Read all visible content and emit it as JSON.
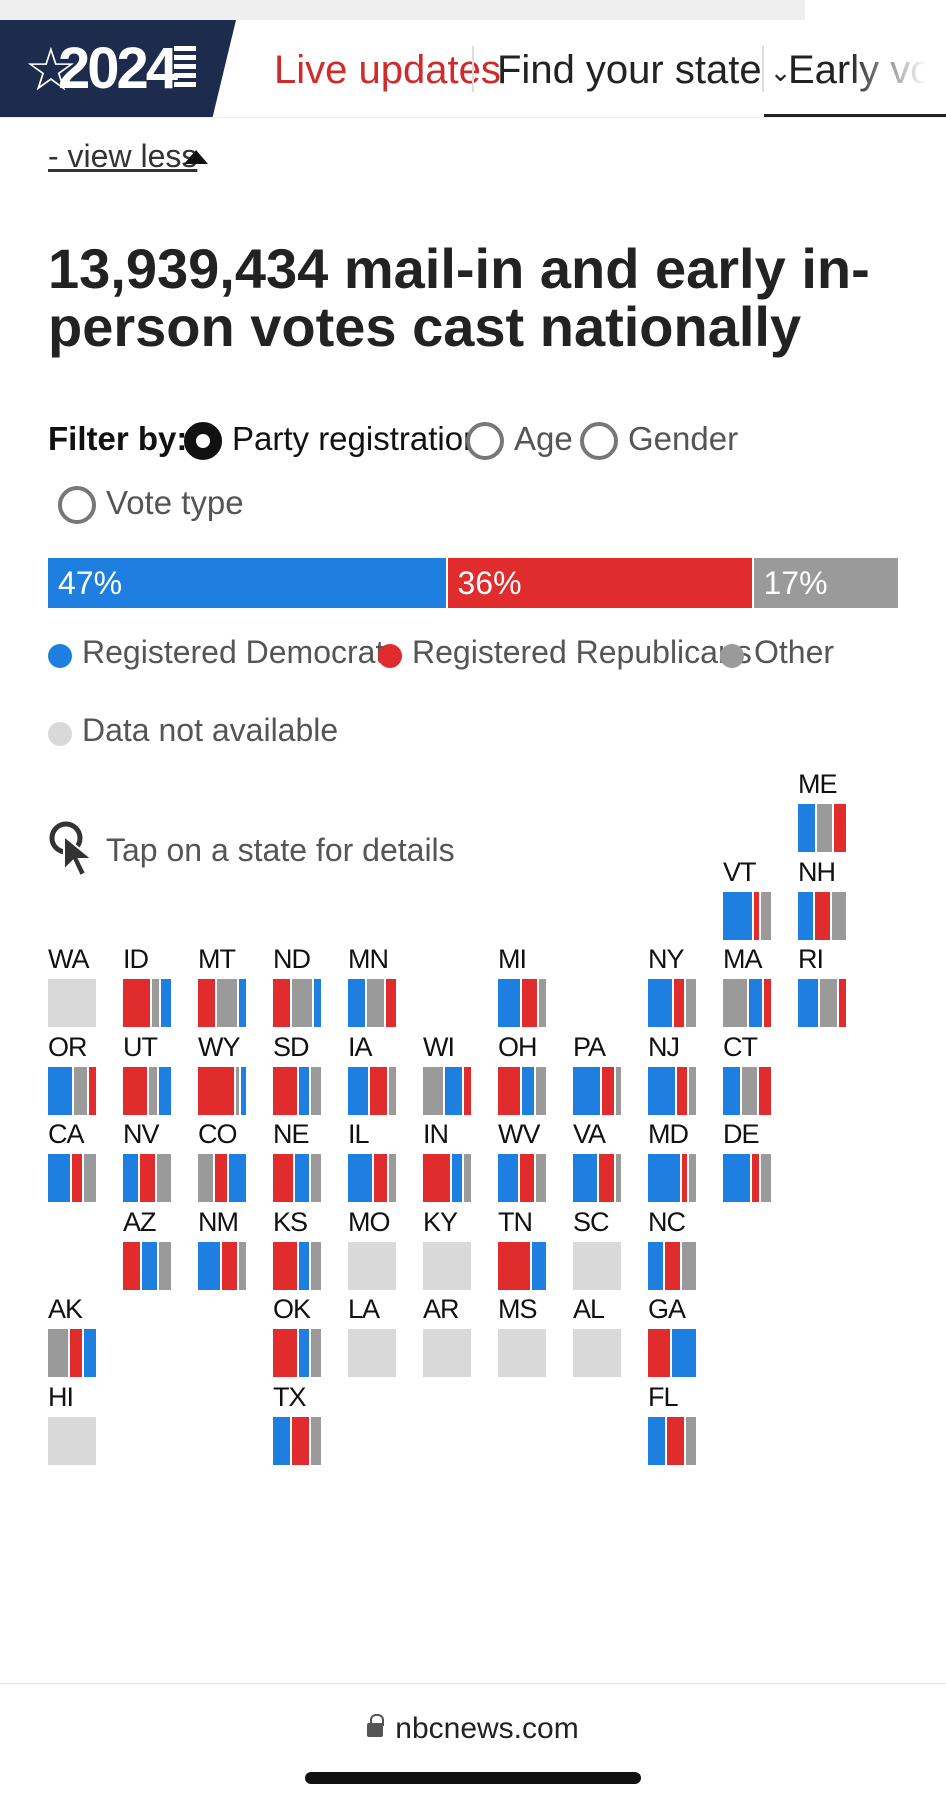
{
  "nav": {
    "logo_year": "2024",
    "items": [
      {
        "label": "Live updates"
      },
      {
        "label": "Find your state"
      },
      {
        "label": "Early voting"
      }
    ]
  },
  "view_less": "- view less",
  "headline": "13,939,434 mail-in and early in-person votes cast nationally",
  "filter": {
    "label": "Filter by:",
    "options": [
      "Party registration",
      "Age",
      "Gender",
      "Vote type"
    ],
    "selected": "Party registration"
  },
  "colors": {
    "dem": "#1f7fe0",
    "rep": "#e02c2c",
    "other": "#9a9a9a",
    "na": "#d9d9d9"
  },
  "national": {
    "segments": [
      {
        "label": "47%",
        "value": 47,
        "party": "dem"
      },
      {
        "label": "36%",
        "value": 36,
        "party": "rep"
      },
      {
        "label": "17%",
        "value": 17,
        "party": "other"
      }
    ]
  },
  "legend": [
    {
      "label": "Registered Democrats",
      "party": "dem"
    },
    {
      "label": "Registered Republicans",
      "party": "rep"
    },
    {
      "label": "Other",
      "party": "other"
    },
    {
      "label": "Data not available",
      "party": "na"
    }
  ],
  "tap_hint": "Tap on a state for details",
  "states": [
    {
      "abbr": "ME",
      "mix": [
        [
          "dem",
          40
        ],
        [
          "other",
          35
        ],
        [
          "rep",
          25
        ]
      ]
    },
    {
      "abbr": "VT",
      "mix": [
        [
          "dem",
          65
        ],
        [
          "rep",
          15
        ],
        [
          "other",
          20
        ]
      ]
    },
    {
      "abbr": "NH",
      "mix": [
        [
          "dem",
          35
        ],
        [
          "rep",
          35
        ],
        [
          "other",
          30
        ]
      ]
    },
    {
      "abbr": "WA",
      "mix": []
    },
    {
      "abbr": "ID",
      "mix": [
        [
          "rep",
          60
        ],
        [
          "other",
          20
        ],
        [
          "dem",
          20
        ]
      ]
    },
    {
      "abbr": "MT",
      "mix": [
        [
          "rep",
          40
        ],
        [
          "other",
          45
        ],
        [
          "dem",
          15
        ]
      ]
    },
    {
      "abbr": "ND",
      "mix": [
        [
          "rep",
          40
        ],
        [
          "other",
          45
        ],
        [
          "dem",
          15
        ]
      ]
    },
    {
      "abbr": "MN",
      "mix": [
        [
          "dem",
          40
        ],
        [
          "other",
          40
        ],
        [
          "rep",
          20
        ]
      ]
    },
    {
      "abbr": "MI",
      "mix": [
        [
          "dem",
          50
        ],
        [
          "rep",
          35
        ],
        [
          "other",
          15
        ]
      ]
    },
    {
      "abbr": "NY",
      "mix": [
        [
          "dem",
          55
        ],
        [
          "rep",
          25
        ],
        [
          "other",
          20
        ]
      ]
    },
    {
      "abbr": "MA",
      "mix": [
        [
          "other",
          55
        ],
        [
          "dem",
          30
        ],
        [
          "rep",
          15
        ]
      ]
    },
    {
      "abbr": "RI",
      "mix": [
        [
          "dem",
          45
        ],
        [
          "other",
          40
        ],
        [
          "rep",
          15
        ]
      ]
    },
    {
      "abbr": "OR",
      "mix": [
        [
          "dem",
          55
        ],
        [
          "other",
          30
        ],
        [
          "rep",
          15
        ]
      ]
    },
    {
      "abbr": "UT",
      "mix": [
        [
          "rep",
          55
        ],
        [
          "other",
          20
        ],
        [
          "dem",
          25
        ]
      ]
    },
    {
      "abbr": "WY",
      "mix": [
        [
          "rep",
          80
        ],
        [
          "other",
          10
        ],
        [
          "dem",
          10
        ]
      ]
    },
    {
      "abbr": "SD",
      "mix": [
        [
          "rep",
          55
        ],
        [
          "dem",
          25
        ],
        [
          "other",
          20
        ]
      ]
    },
    {
      "abbr": "IA",
      "mix": [
        [
          "dem",
          45
        ],
        [
          "rep",
          40
        ],
        [
          "other",
          15
        ]
      ]
    },
    {
      "abbr": "WI",
      "mix": [
        [
          "other",
          45
        ],
        [
          "dem",
          40
        ],
        [
          "rep",
          15
        ]
      ]
    },
    {
      "abbr": "OH",
      "mix": [
        [
          "rep",
          50
        ],
        [
          "dem",
          30
        ],
        [
          "other",
          20
        ]
      ]
    },
    {
      "abbr": "PA",
      "mix": [
        [
          "dem",
          60
        ],
        [
          "rep",
          30
        ],
        [
          "other",
          10
        ]
      ]
    },
    {
      "abbr": "NJ",
      "mix": [
        [
          "dem",
          60
        ],
        [
          "rep",
          25
        ],
        [
          "other",
          15
        ]
      ]
    },
    {
      "abbr": "CT",
      "mix": [
        [
          "dem",
          40
        ],
        [
          "other",
          35
        ],
        [
          "rep",
          25
        ]
      ]
    },
    {
      "abbr": "CA",
      "mix": [
        [
          "dem",
          50
        ],
        [
          "rep",
          25
        ],
        [
          "other",
          25
        ]
      ]
    },
    {
      "abbr": "NV",
      "mix": [
        [
          "dem",
          35
        ],
        [
          "rep",
          35
        ],
        [
          "other",
          30
        ]
      ]
    },
    {
      "abbr": "CO",
      "mix": [
        [
          "other",
          35
        ],
        [
          "rep",
          30
        ],
        [
          "dem",
          35
        ]
      ]
    },
    {
      "abbr": "NE",
      "mix": [
        [
          "rep",
          45
        ],
        [
          "dem",
          35
        ],
        [
          "other",
          20
        ]
      ]
    },
    {
      "abbr": "IL",
      "mix": [
        [
          "dem",
          55
        ],
        [
          "rep",
          30
        ],
        [
          "other",
          15
        ]
      ]
    },
    {
      "abbr": "IN",
      "mix": [
        [
          "rep",
          60
        ],
        [
          "dem",
          25
        ],
        [
          "other",
          15
        ]
      ]
    },
    {
      "abbr": "WV",
      "mix": [
        [
          "dem",
          45
        ],
        [
          "rep",
          35
        ],
        [
          "other",
          20
        ]
      ]
    },
    {
      "abbr": "VA",
      "mix": [
        [
          "dem",
          55
        ],
        [
          "rep",
          35
        ],
        [
          "other",
          10
        ]
      ]
    },
    {
      "abbr": "MD",
      "mix": [
        [
          "dem",
          70
        ],
        [
          "rep",
          15
        ],
        [
          "other",
          15
        ]
      ]
    },
    {
      "abbr": "DE",
      "mix": [
        [
          "dem",
          60
        ],
        [
          "rep",
          20
        ],
        [
          "other",
          20
        ]
      ]
    },
    {
      "abbr": "AZ",
      "mix": [
        [
          "rep",
          40
        ],
        [
          "dem",
          35
        ],
        [
          "other",
          25
        ]
      ]
    },
    {
      "abbr": "NM",
      "mix": [
        [
          "dem",
          50
        ],
        [
          "rep",
          35
        ],
        [
          "other",
          15
        ]
      ]
    },
    {
      "abbr": "KS",
      "mix": [
        [
          "rep",
          55
        ],
        [
          "dem",
          25
        ],
        [
          "other",
          20
        ]
      ]
    },
    {
      "abbr": "MO",
      "mix": []
    },
    {
      "abbr": "KY",
      "mix": []
    },
    {
      "abbr": "TN",
      "mix": [
        [
          "rep",
          70
        ],
        [
          "dem",
          30
        ]
      ]
    },
    {
      "abbr": "SC",
      "mix": []
    },
    {
      "abbr": "NC",
      "mix": [
        [
          "dem",
          35
        ],
        [
          "rep",
          35
        ],
        [
          "other",
          30
        ]
      ]
    },
    {
      "abbr": "AK",
      "mix": [
        [
          "other",
          45
        ],
        [
          "rep",
          30
        ],
        [
          "dem",
          25
        ]
      ]
    },
    {
      "abbr": "OK",
      "mix": [
        [
          "rep",
          55
        ],
        [
          "dem",
          25
        ],
        [
          "other",
          20
        ]
      ]
    },
    {
      "abbr": "LA",
      "mix": []
    },
    {
      "abbr": "AR",
      "mix": []
    },
    {
      "abbr": "MS",
      "mix": []
    },
    {
      "abbr": "AL",
      "mix": []
    },
    {
      "abbr": "GA",
      "mix": [
        [
          "rep",
          50
        ],
        [
          "dem",
          50
        ]
      ]
    },
    {
      "abbr": "HI",
      "mix": []
    },
    {
      "abbr": "TX",
      "mix": [
        [
          "dem",
          40
        ],
        [
          "rep",
          40
        ],
        [
          "other",
          20
        ]
      ]
    },
    {
      "abbr": "FL",
      "mix": [
        [
          "dem",
          40
        ],
        [
          "rep",
          40
        ],
        [
          "other",
          20
        ]
      ]
    }
  ],
  "footer": {
    "domain": "nbcnews.com"
  }
}
